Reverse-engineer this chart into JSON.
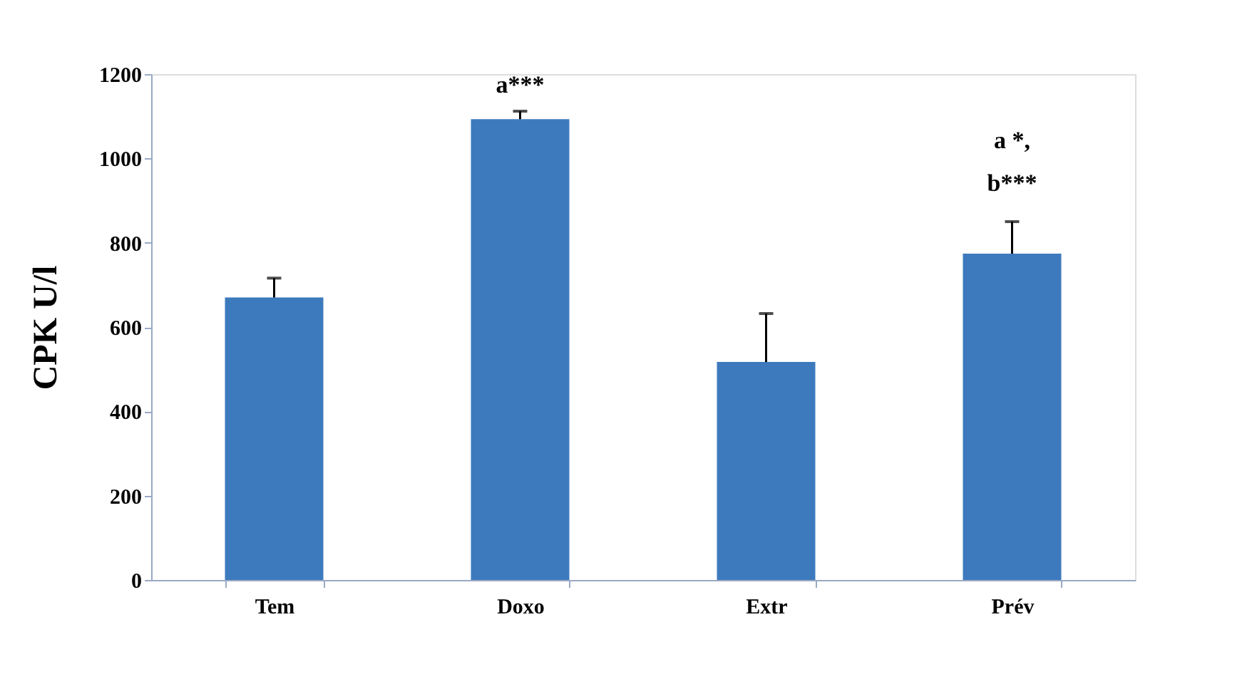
{
  "chart_data": {
    "type": "bar",
    "ylabel": "CPK U/l",
    "categories": [
      "Tem",
      "Doxo",
      "Extr",
      "Prév"
    ],
    "values": [
      670,
      1093,
      517,
      774
    ],
    "errors": [
      [
        670,
        716
      ],
      [
        1093,
        1112
      ],
      [
        517,
        632
      ],
      [
        774,
        850
      ]
    ],
    "color": "#3d7abd",
    "ylim": [
      0,
      1200
    ],
    "yticks": [
      0,
      200,
      400,
      600,
      800,
      1000,
      1200
    ],
    "grid": false,
    "annotations": [
      "a***",
      "a *,",
      "b***"
    ]
  }
}
